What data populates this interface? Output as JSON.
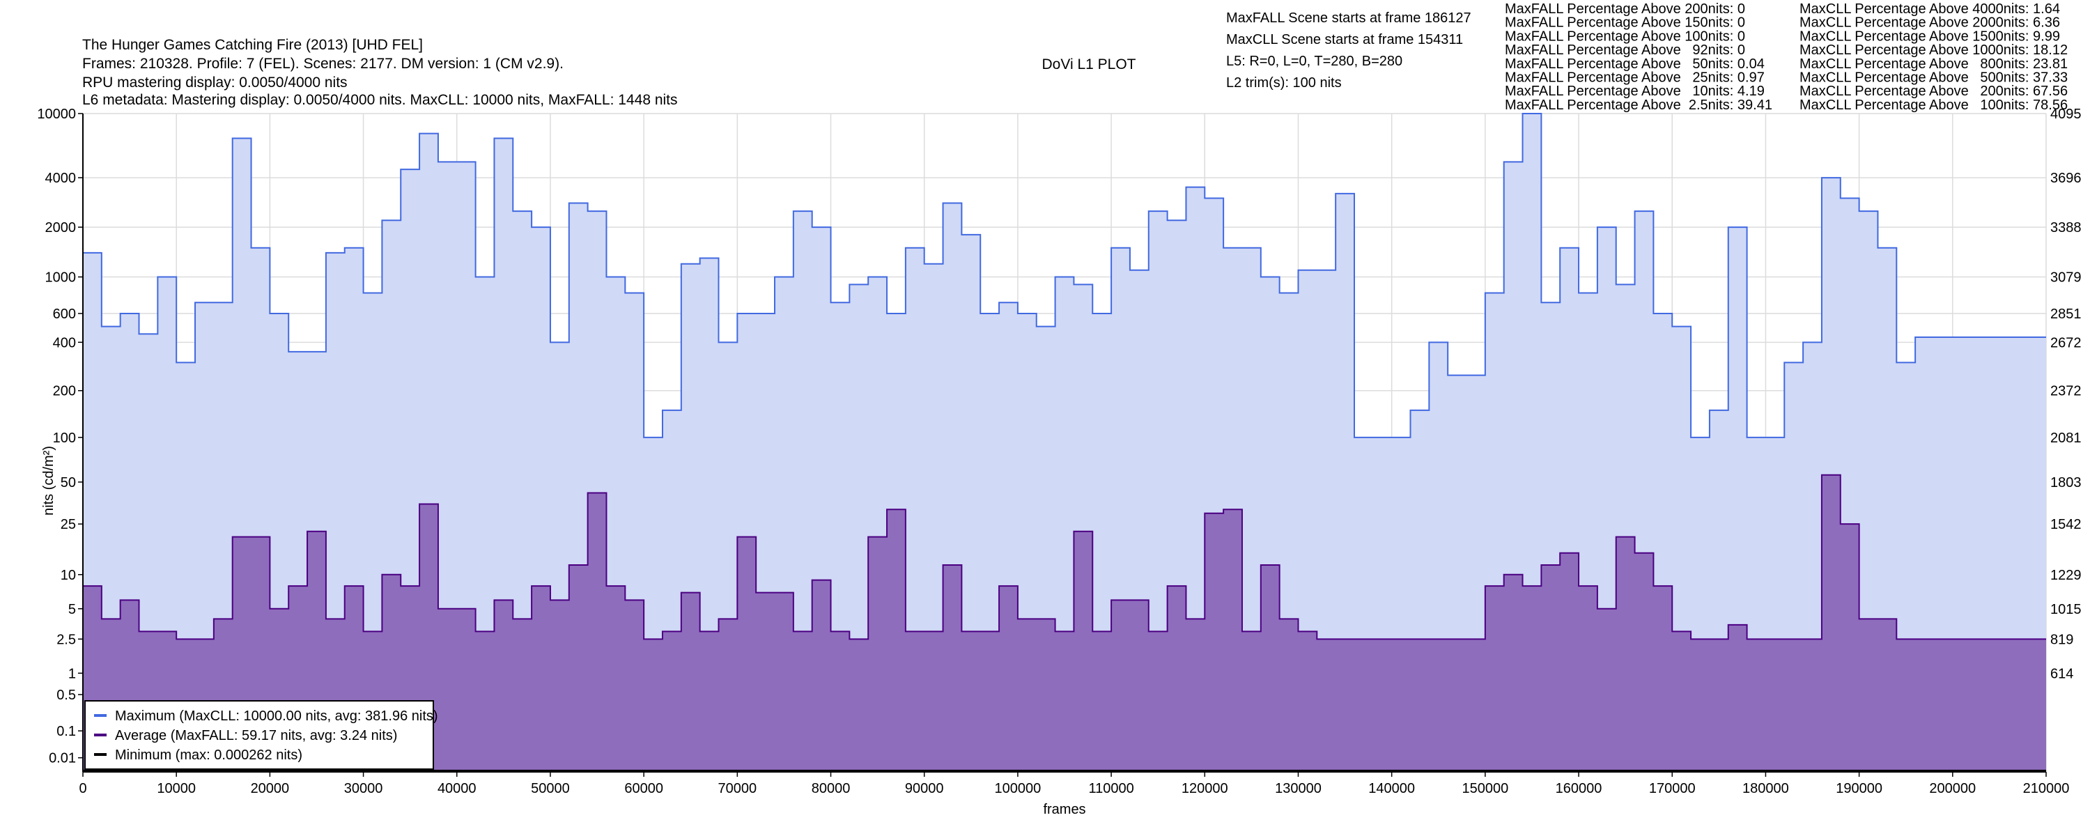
{
  "header": {
    "title": "The Hunger Games Catching Fire (2013) [UHD FEL]",
    "line2": "Frames: 210328. Profile: 7 (FEL). Scenes: 2177. DM version: 1 (CM v2.9).",
    "line3": "RPU mastering display: 0.0050/4000 nits",
    "line4": "L6 metadata: Mastering display: 0.0050/4000 nits. MaxCLL: 10000 nits, MaxFALL: 1448 nits",
    "plot_title": "DoVi L1 PLOT"
  },
  "info": [
    "MaxFALL Scene starts at frame 186127",
    "MaxCLL Scene starts at frame 154311",
    "L5: R=0, L=0, T=280, B=280",
    "L2 trim(s): 100 nits"
  ],
  "maxfall_stats": [
    "MaxFALL Percentage Above 200nits: 0",
    "MaxFALL Percentage Above 150nits: 0",
    "MaxFALL Percentage Above 100nits: 0",
    "MaxFALL Percentage Above   92nits: 0",
    "MaxFALL Percentage Above   50nits: 0.04",
    "MaxFALL Percentage Above   25nits: 0.97",
    "MaxFALL Percentage Above   10nits: 4.19",
    "MaxFALL Percentage Above  2.5nits: 39.41"
  ],
  "maxcll_stats": [
    "MaxCLL Percentage Above 4000nits: 1.64",
    "MaxCLL Percentage Above 2000nits: 6.36",
    "MaxCLL Percentage Above 1500nits: 9.99",
    "MaxCLL Percentage Above 1000nits: 18.12",
    "MaxCLL Percentage Above   800nits: 23.81",
    "MaxCLL Percentage Above   500nits: 37.33",
    "MaxCLL Percentage Above   200nits: 67.56",
    "MaxCLL Percentage Above   100nits: 78.56"
  ],
  "chart_data": {
    "type": "area",
    "title": "DoVi L1 PLOT",
    "xlabel": "frames",
    "ylabel": "nits (cd/m²)",
    "xlim": [
      0,
      210000
    ],
    "x_ticks": [
      "0",
      "10000",
      "20000",
      "30000",
      "40000",
      "50000",
      "60000",
      "70000",
      "80000",
      "90000",
      "100000",
      "110000",
      "120000",
      "130000",
      "140000",
      "150000",
      "160000",
      "170000",
      "180000",
      "190000",
      "200000",
      "210000"
    ],
    "y_scale": "PQ",
    "ylim": [
      0,
      10000
    ],
    "y_ticks": [
      10000,
      4000,
      2000,
      1000,
      600,
      400,
      200,
      100,
      50,
      25,
      10,
      5,
      2.5,
      1,
      0.5,
      0.1,
      0.01
    ],
    "y_tick_labels": [
      "10000",
      "4000",
      "2000",
      "1000",
      "600",
      "400",
      "200",
      "100",
      "50",
      "25",
      "10",
      "5",
      "2.5",
      "1",
      "0.5",
      "0.1",
      "0.01"
    ],
    "y2_tick_labels": [
      "4095",
      "3696",
      "3388",
      "3079",
      "2851",
      "2672",
      "2372",
      "2081",
      "1803",
      "1542",
      "1229",
      "1015",
      "819",
      "614"
    ],
    "grid": true,
    "legend_placement": "bottom-left",
    "bin_frames": 2000,
    "total_frames": 210328,
    "series": [
      {
        "name": "Maximum (MaxCLL: 10000.00 nits, avg: 381.96 nits)",
        "color": "#4169e1",
        "fill": "#d0d9f6",
        "values": [
          1400,
          500,
          600,
          450,
          1000,
          300,
          700,
          700,
          7000,
          1500,
          600,
          350,
          350,
          1400,
          1500,
          800,
          2200,
          4500,
          7500,
          5000,
          5000,
          1000,
          7000,
          2500,
          2000,
          400,
          2800,
          2500,
          1000,
          800,
          100,
          150,
          1200,
          1300,
          400,
          600,
          600,
          1000,
          2500,
          2000,
          700,
          900,
          1000,
          600,
          1500,
          1200,
          2800,
          1800,
          600,
          700,
          600,
          500,
          1000,
          900,
          600,
          1500,
          1100,
          2500,
          2200,
          3500,
          3000,
          1500,
          1500,
          1000,
          800,
          1100,
          1100,
          3200,
          100,
          100,
          100,
          150,
          400,
          250,
          250,
          800,
          5000,
          10000,
          700,
          1500,
          800,
          2000,
          900,
          2500,
          600,
          500,
          100,
          150,
          2000,
          100,
          100,
          300,
          400,
          4000,
          3000,
          2500,
          1500,
          300,
          430,
          430,
          430,
          430,
          430,
          430,
          430
        ]
      },
      {
        "name": "Average (MaxFALL: 59.17 nits, avg: 3.24 nits)",
        "color": "#4b0082",
        "fill": "#8f6dbd",
        "values": [
          8,
          4,
          6,
          3,
          3,
          2.5,
          2.5,
          4,
          20,
          20,
          5,
          8,
          22,
          4,
          8,
          3,
          10,
          8,
          35,
          5,
          5,
          3,
          6,
          4,
          8,
          6,
          12,
          42,
          8,
          6,
          2.5,
          3,
          7,
          3,
          4,
          20,
          7,
          7,
          3,
          9,
          3,
          2.5,
          20,
          32,
          3,
          3,
          12,
          3,
          3,
          8,
          4,
          4,
          3,
          22,
          3,
          6,
          6,
          3,
          8,
          4,
          30,
          32,
          3,
          12,
          4,
          3,
          2.5,
          2.5,
          2.5,
          2.5,
          2.5,
          2.5,
          2.5,
          2.5,
          2.5,
          8,
          10,
          8,
          12,
          15,
          8,
          5,
          20,
          15,
          8,
          3,
          2.5,
          2.5,
          3.5,
          2.5,
          2.5,
          2.5,
          2.5,
          56,
          25,
          4,
          4,
          2.5,
          2.5,
          2.5,
          2.5,
          2.5,
          2.5,
          2.5,
          2.5
        ]
      },
      {
        "name": "Minimum (max: 0.000262 nits)",
        "color": "#000000",
        "fill": "none",
        "values": [
          0.0001
        ]
      }
    ]
  }
}
